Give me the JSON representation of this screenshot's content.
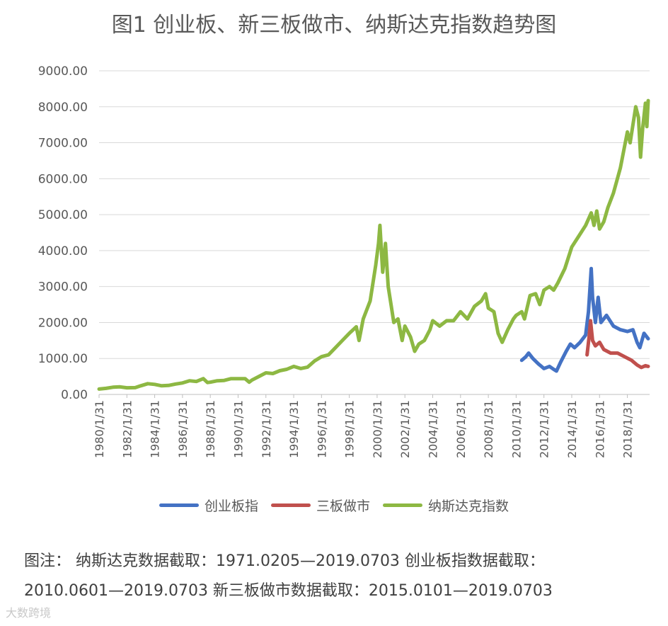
{
  "title": "图1  创业板、新三板做市、纳斯达克指数趋势图",
  "legend": [
    {
      "name": "创业板指",
      "color": "#4472C4"
    },
    {
      "name": "三板做市",
      "color": "#C0504D"
    },
    {
      "name": "纳斯达克指数",
      "color": "#8DB843"
    }
  ],
  "notes": {
    "line1": "图注：  纳斯达克数据截取：1971.0205—2019.0703   创业板指数据截取：",
    "line2": "2010.0601—2019.0703   新三板做市数据截取：2015.0101—2019.0703"
  },
  "watermark": "大数跨境",
  "chart_data": {
    "type": "line",
    "title": "图1  创业板、新三板做市、纳斯达克指数趋势图",
    "xlabel": "",
    "ylabel": "",
    "ylim": [
      0,
      9000
    ],
    "xlim": [
      1980.0,
      2019.6
    ],
    "grid": true,
    "legend_position": "bottom",
    "y_ticks": [
      "0.00",
      "1000.00",
      "2000.00",
      "3000.00",
      "4000.00",
      "5000.00",
      "6000.00",
      "7000.00",
      "8000.00",
      "9000.00"
    ],
    "x_ticks": [
      "1980/1/31",
      "1982/1/31",
      "1984/1/31",
      "1986/1/31",
      "1988/1/31",
      "1990/1/31",
      "1992/1/31",
      "1994/1/31",
      "1996/1/31",
      "1998/1/31",
      "2000/1/31",
      "2002/1/31",
      "2004/1/31",
      "2006/1/31",
      "2008/1/31",
      "2010/1/31",
      "2012/1/31",
      "2014/1/31",
      "2016/1/31",
      "2018/1/31"
    ],
    "series": [
      {
        "name": "纳斯达克指数",
        "color": "#8DB843",
        "points": [
          [
            1980.0,
            150
          ],
          [
            1980.5,
            170
          ],
          [
            1981.0,
            200
          ],
          [
            1981.5,
            210
          ],
          [
            1982.0,
            185
          ],
          [
            1982.6,
            190
          ],
          [
            1983.0,
            240
          ],
          [
            1983.5,
            300
          ],
          [
            1984.0,
            280
          ],
          [
            1984.5,
            240
          ],
          [
            1985.0,
            250
          ],
          [
            1985.5,
            290
          ],
          [
            1986.0,
            320
          ],
          [
            1986.5,
            380
          ],
          [
            1987.0,
            360
          ],
          [
            1987.5,
            440
          ],
          [
            1987.8,
            330
          ],
          [
            1988.0,
            340
          ],
          [
            1988.5,
            380
          ],
          [
            1989.0,
            390
          ],
          [
            1989.5,
            440
          ],
          [
            1990.0,
            440
          ],
          [
            1990.5,
            440
          ],
          [
            1990.8,
            340
          ],
          [
            1991.0,
            400
          ],
          [
            1991.5,
            500
          ],
          [
            1992.0,
            600
          ],
          [
            1992.5,
            580
          ],
          [
            1993.0,
            660
          ],
          [
            1993.5,
            700
          ],
          [
            1994.0,
            780
          ],
          [
            1994.5,
            720
          ],
          [
            1995.0,
            760
          ],
          [
            1995.5,
            930
          ],
          [
            1996.0,
            1050
          ],
          [
            1996.5,
            1100
          ],
          [
            1997.0,
            1300
          ],
          [
            1997.5,
            1500
          ],
          [
            1998.0,
            1700
          ],
          [
            1998.5,
            1880
          ],
          [
            1998.7,
            1500
          ],
          [
            1999.0,
            2100
          ],
          [
            1999.5,
            2600
          ],
          [
            1999.9,
            3600
          ],
          [
            2000.1,
            4200
          ],
          [
            2000.2,
            4700
          ],
          [
            2000.4,
            3400
          ],
          [
            2000.6,
            4200
          ],
          [
            2000.8,
            3000
          ],
          [
            2001.0,
            2500
          ],
          [
            2001.2,
            2000
          ],
          [
            2001.5,
            2100
          ],
          [
            2001.8,
            1500
          ],
          [
            2002.0,
            1900
          ],
          [
            2002.4,
            1600
          ],
          [
            2002.7,
            1200
          ],
          [
            2003.0,
            1400
          ],
          [
            2003.4,
            1500
          ],
          [
            2003.8,
            1800
          ],
          [
            2004.0,
            2050
          ],
          [
            2004.5,
            1900
          ],
          [
            2005.0,
            2050
          ],
          [
            2005.5,
            2050
          ],
          [
            2006.0,
            2300
          ],
          [
            2006.5,
            2100
          ],
          [
            2007.0,
            2450
          ],
          [
            2007.5,
            2600
          ],
          [
            2007.8,
            2800
          ],
          [
            2008.0,
            2400
          ],
          [
            2008.4,
            2300
          ],
          [
            2008.7,
            1700
          ],
          [
            2009.0,
            1450
          ],
          [
            2009.4,
            1800
          ],
          [
            2009.8,
            2100
          ],
          [
            2010.0,
            2200
          ],
          [
            2010.4,
            2300
          ],
          [
            2010.6,
            2100
          ],
          [
            2011.0,
            2750
          ],
          [
            2011.4,
            2800
          ],
          [
            2011.7,
            2500
          ],
          [
            2012.0,
            2900
          ],
          [
            2012.4,
            3000
          ],
          [
            2012.7,
            2900
          ],
          [
            2013.0,
            3100
          ],
          [
            2013.5,
            3500
          ],
          [
            2014.0,
            4100
          ],
          [
            2014.5,
            4400
          ],
          [
            2015.0,
            4700
          ],
          [
            2015.4,
            5050
          ],
          [
            2015.6,
            4700
          ],
          [
            2015.8,
            5100
          ],
          [
            2016.0,
            4600
          ],
          [
            2016.3,
            4800
          ],
          [
            2016.6,
            5200
          ],
          [
            2017.0,
            5600
          ],
          [
            2017.5,
            6300
          ],
          [
            2018.0,
            7300
          ],
          [
            2018.2,
            7000
          ],
          [
            2018.6,
            8000
          ],
          [
            2018.8,
            7700
          ],
          [
            2018.95,
            6600
          ],
          [
            2019.1,
            7400
          ],
          [
            2019.3,
            8100
          ],
          [
            2019.4,
            7450
          ],
          [
            2019.5,
            8170
          ]
        ]
      },
      {
        "name": "创业板指",
        "color": "#4472C4",
        "points": [
          [
            2010.4,
            950
          ],
          [
            2010.7,
            1050
          ],
          [
            2010.9,
            1150
          ],
          [
            2011.2,
            1000
          ],
          [
            2011.6,
            850
          ],
          [
            2012.0,
            720
          ],
          [
            2012.4,
            780
          ],
          [
            2012.7,
            700
          ],
          [
            2012.9,
            650
          ],
          [
            2013.2,
            900
          ],
          [
            2013.6,
            1200
          ],
          [
            2013.9,
            1400
          ],
          [
            2014.2,
            1300
          ],
          [
            2014.6,
            1450
          ],
          [
            2015.0,
            1650
          ],
          [
            2015.2,
            2300
          ],
          [
            2015.4,
            3500
          ],
          [
            2015.5,
            2700
          ],
          [
            2015.7,
            2000
          ],
          [
            2015.9,
            2700
          ],
          [
            2016.1,
            2000
          ],
          [
            2016.5,
            2200
          ],
          [
            2017.0,
            1900
          ],
          [
            2017.5,
            1800
          ],
          [
            2018.0,
            1750
          ],
          [
            2018.4,
            1800
          ],
          [
            2018.7,
            1450
          ],
          [
            2018.9,
            1300
          ],
          [
            2019.2,
            1700
          ],
          [
            2019.5,
            1550
          ]
        ]
      },
      {
        "name": "三板做市",
        "color": "#C0504D",
        "points": [
          [
            2015.1,
            1100
          ],
          [
            2015.25,
            1600
          ],
          [
            2015.35,
            2050
          ],
          [
            2015.5,
            1500
          ],
          [
            2015.7,
            1350
          ],
          [
            2016.0,
            1450
          ],
          [
            2016.3,
            1250
          ],
          [
            2016.8,
            1150
          ],
          [
            2017.3,
            1150
          ],
          [
            2017.8,
            1050
          ],
          [
            2018.3,
            950
          ],
          [
            2018.7,
            820
          ],
          [
            2019.0,
            750
          ],
          [
            2019.3,
            800
          ],
          [
            2019.5,
            780
          ]
        ]
      }
    ]
  }
}
